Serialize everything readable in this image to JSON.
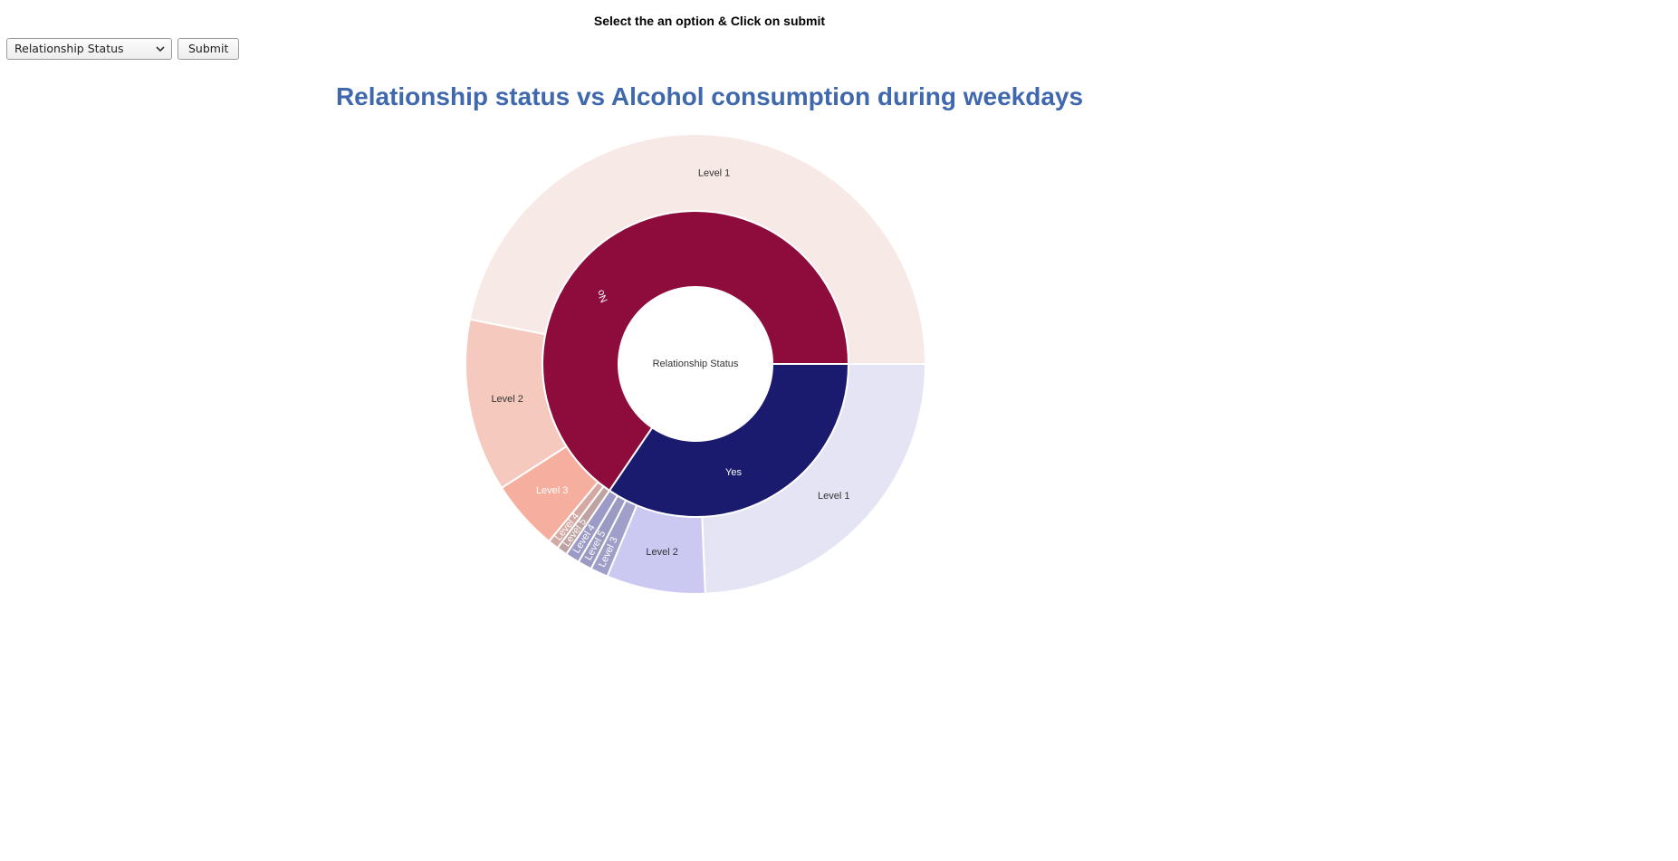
{
  "instruction": "Select the an option & Click on submit",
  "controls": {
    "select_value": "Relationship Status",
    "submit_label": "Submit"
  },
  "chart_title": "Relationship status vs Alcohol consumption during weekdays",
  "chart_data": {
    "type": "sunburst",
    "title": "Relationship status vs Alcohol consumption during weekdays",
    "root": "Relationship Status",
    "groups": [
      {
        "name": "No",
        "color": "#8e0c3c",
        "children": [
          {
            "name": "Level 1",
            "value": 189,
            "color": "#f7e9e6",
            "label_color": "#333333"
          },
          {
            "name": "Level 2",
            "value": 49,
            "color": "#f5c9be",
            "label_color": "#333333"
          },
          {
            "name": "Level 3",
            "value": 20,
            "color": "#f6ae9f",
            "label_color": "#ffffff"
          },
          {
            "name": "Level 4",
            "value": 3,
            "color": "#d4a8a3",
            "label_color": "#ffffff"
          },
          {
            "name": "Level 5",
            "value": 3,
            "color": "#bea3a2",
            "label_color": "#ffffff"
          }
        ]
      },
      {
        "name": "Yes",
        "color": "#1a1a6e",
        "children": [
          {
            "name": "Level 1",
            "value": 98,
            "color": "#e5e4f5",
            "label_color": "#333333"
          },
          {
            "name": "Level 2",
            "value": 28,
            "color": "#cbc9f2",
            "label_color": "#333333"
          },
          {
            "name": "Level 3",
            "value": 5,
            "color": "#a09fca",
            "label_color": "#ffffff"
          },
          {
            "name": "Level 5",
            "value": 4,
            "color": "#9a9ac2",
            "label_color": "#ffffff"
          },
          {
            "name": "Level 4",
            "value": 4,
            "color": "#9c9bc7",
            "label_color": "#ffffff"
          }
        ]
      }
    ]
  }
}
